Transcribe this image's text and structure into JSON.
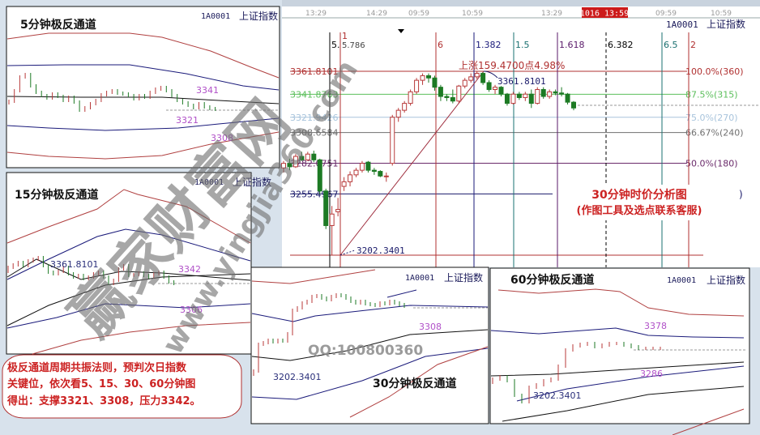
{
  "colors": {
    "up": "#b83a3a",
    "down": "#1d7a24",
    "accent_red": "#cc2222",
    "label_purple": "#b050c8",
    "label_navy": "#2a2f7a",
    "watermark": "#7a7a7a"
  },
  "security": {
    "code": "1A0001",
    "name": "上证指数"
  },
  "main": {
    "time_axis": [
      "13:29",
      "14:29",
      "09:59",
      "10:59",
      "13:29",
      "09:59",
      "10:59"
    ],
    "cursor_time": "1016 13:59",
    "vlines": [
      {
        "label": "5.",
        "color": "#000000"
      },
      {
        "label": "1",
        "sub": "5.786",
        "color": "#b03030"
      },
      {
        "label": "6",
        "color": "#b03030"
      },
      {
        "label": "1.382",
        "color": "#1a1a7a"
      },
      {
        "label": "1.5",
        "color": "#1a7070"
      },
      {
        "label": "1.618",
        "color": "#5a1a6a"
      },
      {
        "label": "6.382",
        "color": "#000000"
      },
      {
        "label": "6.5",
        "color": "#1a7070"
      },
      {
        "label": "2",
        "color": "#b03030"
      }
    ],
    "levels": [
      {
        "price": "3361.8101",
        "pct": "100.0%(360)",
        "color": "#b03030"
      },
      {
        "price": "3341.8763",
        "pct": "87.5%(315)",
        "color": "#5cbf5c"
      },
      {
        "price": "3321.9426",
        "pct": "75.0%(270)",
        "color": "#a8c4dc"
      },
      {
        "price": "3308.6584",
        "pct": "66.67%(240)",
        "color": "#707070"
      },
      {
        "price": "3282.0751",
        "pct": "50.0%(180)",
        "color": "#6a2a6a"
      },
      {
        "price": "3255.4967",
        "pct": "",
        "color": "#1a1a6a"
      },
      {
        "price": "",
        "pct": "",
        "color": "#b03030"
      }
    ],
    "high_label": "3361.8101",
    "low_label": "3202.3401",
    "rise_label": "上涨159.4700点4.98%",
    "box_title": "30分钟时价分析图",
    "box_subtitle": "(作图工具及选点联系客服)",
    "box_paren": ")"
  },
  "panels": {
    "p5": {
      "title": "5分钟极反通道",
      "labels": [
        "3341",
        "3321",
        "3308"
      ]
    },
    "p15": {
      "title": "15分钟极反通道",
      "labels": [
        "3361.8101",
        "3342",
        "3306"
      ]
    },
    "p30": {
      "title": "30分钟极反通道",
      "labels": [
        "3308",
        "3202.3401"
      ]
    },
    "p60": {
      "title": "60分钟极反通道",
      "labels": [
        "3378",
        "3286",
        "3202.3401"
      ]
    }
  },
  "note": {
    "lines": [
      "极反通道周期共振法则，预判次日指数",
      "关键位，依次看5、15、30、60分钟图",
      "得出：支撑3321、3308，压力3342。"
    ]
  },
  "qq": "QQ:100800360",
  "watermark": {
    "brand": "赢家财富网",
    "url": "www.yingjia360.com"
  },
  "chart_data": {
    "type": "candlestick",
    "title": "30分钟时价分析图",
    "fib_levels": [
      {
        "price": 3361.8101,
        "label": "100.0%(360)"
      },
      {
        "price": 3341.8763,
        "label": "87.5%(315)"
      },
      {
        "price": 3321.9426,
        "label": "75.0%(270)"
      },
      {
        "price": 3308.6584,
        "label": "66.67%(240)"
      },
      {
        "price": 3282.0751,
        "label": "50.0%(180)"
      },
      {
        "price": 3255.4967,
        "label": ""
      },
      {
        "price": 3202.3401,
        "label": ""
      }
    ],
    "ohlc": [
      [
        3278,
        3284,
        3274,
        3282
      ],
      [
        3282,
        3286,
        3276,
        3279
      ],
      [
        3279,
        3290,
        3278,
        3288
      ],
      [
        3288,
        3292,
        3284,
        3285
      ],
      [
        3285,
        3292,
        3284,
        3290
      ],
      [
        3290,
        3293,
        3283,
        3285
      ],
      [
        3285,
        3286,
        3255,
        3258
      ],
      [
        3258,
        3260,
        3225,
        3228
      ],
      [
        3228,
        3245,
        3202.34,
        3238
      ],
      [
        3240,
        3252,
        3236,
        3242
      ],
      [
        3262,
        3270,
        3258,
        3266
      ],
      [
        3266,
        3275,
        3262,
        3272
      ],
      [
        3272,
        3278,
        3270,
        3276
      ],
      [
        3276,
        3284,
        3274,
        3282
      ],
      [
        3283,
        3284,
        3274,
        3276
      ],
      [
        3276,
        3278,
        3272,
        3275
      ],
      [
        3275,
        3276,
        3270,
        3271
      ],
      [
        3271,
        3274,
        3266,
        3271
      ],
      [
        3282,
        3324,
        3280,
        3322
      ],
      [
        3322,
        3330,
        3318,
        3328
      ],
      [
        3328,
        3336,
        3326,
        3334
      ],
      [
        3334,
        3346,
        3332,
        3344
      ],
      [
        3344,
        3356,
        3342,
        3354
      ],
      [
        3354,
        3360,
        3350,
        3358
      ],
      [
        3358,
        3360,
        3352,
        3356
      ],
      [
        3356,
        3358,
        3345,
        3348
      ],
      [
        3348,
        3350,
        3336,
        3340
      ],
      [
        3340,
        3342,
        3336,
        3339
      ],
      [
        3339,
        3346,
        3334,
        3336
      ],
      [
        3336,
        3350,
        3334,
        3349
      ],
      [
        3349,
        3356,
        3347,
        3354
      ],
      [
        3354,
        3360,
        3352,
        3357
      ],
      [
        3357,
        3361.81,
        3355,
        3360
      ],
      [
        3360,
        3361,
        3350,
        3352
      ],
      [
        3352,
        3354,
        3344,
        3346
      ],
      [
        3346,
        3350,
        3342,
        3348
      ],
      [
        3348,
        3349,
        3340,
        3342
      ],
      [
        3342,
        3343,
        3332,
        3334
      ],
      [
        3334,
        3344,
        3333,
        3342
      ],
      [
        3342,
        3344,
        3337,
        3339
      ],
      [
        3339,
        3344,
        3336,
        3342
      ],
      [
        3342,
        3346,
        3330,
        3334
      ],
      [
        3334,
        3348,
        3333,
        3346
      ],
      [
        3346,
        3348,
        3338,
        3340
      ],
      [
        3340,
        3346,
        3338,
        3344
      ],
      [
        3344,
        3346,
        3341,
        3343
      ],
      [
        3343,
        3348,
        3340,
        3342
      ],
      [
        3342,
        3343,
        3333,
        3335
      ],
      [
        3335,
        3336,
        3328,
        3330
      ]
    ],
    "rise": {
      "from": 3202.3401,
      "to": 3361.8101,
      "points": 159.47,
      "pct": 4.98
    }
  }
}
